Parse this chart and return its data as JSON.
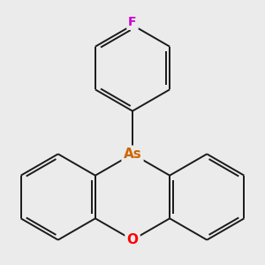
{
  "background_color": "#ebebeb",
  "as_color": "#cc6600",
  "o_color": "#ff0000",
  "f_color": "#cc00cc",
  "bond_color": "#1a1a1a",
  "bond_width": 1.4,
  "as_label": "As",
  "o_label": "O",
  "f_label": "F",
  "label_fontsize": 11,
  "f_fontsize": 10
}
